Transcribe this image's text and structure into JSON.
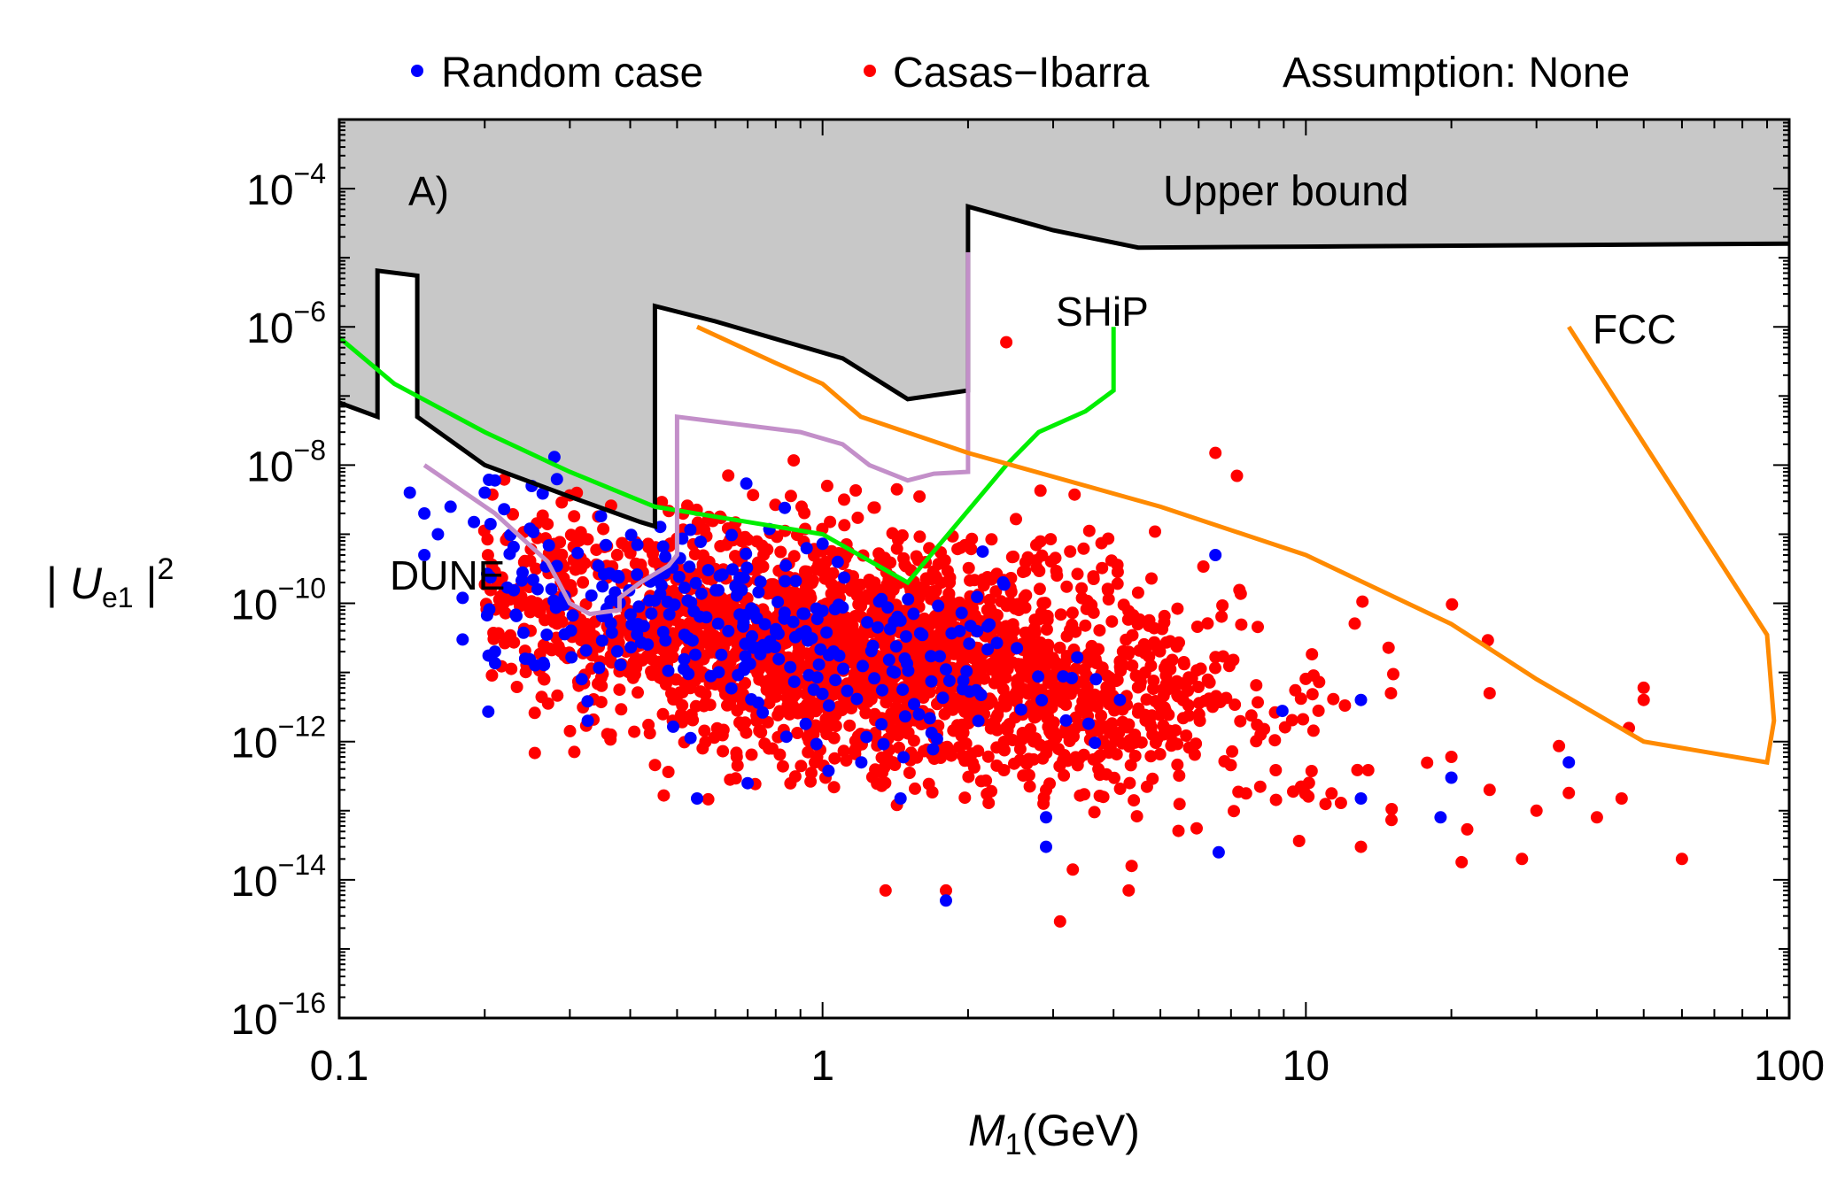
{
  "chart_data": {
    "type": "scatter",
    "title": "",
    "panel_label": "A)",
    "xlabel_main": "M",
    "xlabel_sub": "1",
    "xlabel_unit": "(GeV)",
    "ylabel_pre": "| ",
    "ylabel_main": "U",
    "ylabel_sub": "e1",
    "ylabel_post": " |",
    "ylabel_sup": "2",
    "x_scale": "log",
    "y_scale": "log",
    "xlim": [
      0.1,
      100
    ],
    "ylim": [
      1e-16,
      0.001
    ],
    "x_ticks": [
      {
        "value": 0.1,
        "label": "0.1"
      },
      {
        "value": 1,
        "label": "1"
      },
      {
        "value": 10,
        "label": "10"
      },
      {
        "value": 100,
        "label": "100"
      }
    ],
    "y_ticks": [
      {
        "exp": -4,
        "base": "10",
        "sup": "−4"
      },
      {
        "exp": -6,
        "base": "10",
        "sup": "−6"
      },
      {
        "exp": -8,
        "base": "10",
        "sup": "−8"
      },
      {
        "exp": -10,
        "base": "10",
        "sup": "−10"
      },
      {
        "exp": -12,
        "base": "10",
        "sup": "−12"
      },
      {
        "exp": -14,
        "base": "10",
        "sup": "−14"
      },
      {
        "exp": -16,
        "base": "10",
        "sup": "−16"
      }
    ],
    "legend": {
      "placement": "top",
      "entries": [
        {
          "label": "Random case",
          "color": "#0000ff"
        },
        {
          "label": "Casas−Ibarra",
          "color": "#ff0000"
        }
      ],
      "note": "Assumption: None"
    },
    "series": [
      {
        "name": "Casas−Ibarra",
        "color": "#ff0000",
        "cloud": {
          "count": 2400,
          "seed": 17,
          "log_x_center": 0.05,
          "log_x_sd": 0.42,
          "log_y_center": -10.7,
          "log_y_sd": 0.85,
          "slope": -1.0
        },
        "outliers": [
          [
            2.4,
            6e-07
          ],
          [
            6.5,
            1.5e-08
          ],
          [
            7.2,
            7e-09
          ],
          [
            3.1,
            2.5e-15
          ],
          [
            4.3,
            7e-15
          ],
          [
            1.8,
            7e-15
          ],
          [
            1.35,
            7e-15
          ],
          [
            60,
            2e-14
          ],
          [
            50,
            6e-12
          ],
          [
            50,
            4e-12
          ],
          [
            35,
            1.8e-13
          ],
          [
            40,
            8e-14
          ],
          [
            45,
            1.5e-13
          ],
          [
            28,
            2e-14
          ],
          [
            21,
            1.8e-14
          ],
          [
            24,
            5e-12
          ],
          [
            24,
            2e-13
          ],
          [
            30,
            1e-13
          ],
          [
            13,
            3e-14
          ],
          [
            15,
            5e-12
          ],
          [
            20,
            6e-13
          ]
        ]
      },
      {
        "name": "Random case",
        "color": "#0000ff",
        "cloud": {
          "count": 330,
          "seed": 91,
          "log_x_center": -0.2,
          "log_x_sd": 0.38,
          "log_y_center": -10.3,
          "log_y_sd": 0.7,
          "slope": -1.1
        },
        "outliers": [
          [
            0.14,
            4e-09
          ],
          [
            0.15,
            2e-09
          ],
          [
            0.17,
            2.5e-09
          ],
          [
            0.16,
            1e-09
          ],
          [
            0.18,
            1.2e-10
          ],
          [
            0.2,
            4e-09
          ],
          [
            0.21,
            6e-09
          ],
          [
            0.19,
            1.5e-09
          ],
          [
            0.18,
            3e-11
          ],
          [
            0.21,
            2e-11
          ],
          [
            0.15,
            5e-10
          ],
          [
            1.8,
            5e-15
          ],
          [
            0.55,
            1.5e-13
          ],
          [
            0.7,
            2.5e-13
          ],
          [
            1.45,
            1.5e-13
          ],
          [
            2.9,
            3e-14
          ],
          [
            2.9,
            8e-14
          ],
          [
            6.6,
            2.5e-14
          ],
          [
            19,
            8e-14
          ],
          [
            13,
            1.5e-13
          ],
          [
            20,
            3e-13
          ],
          [
            35,
            5e-13
          ],
          [
            13,
            4e-12
          ],
          [
            6.5,
            5e-10
          ]
        ]
      }
    ],
    "curves": [
      {
        "name": "Upper bound",
        "label": "Upper bound",
        "color": "#000000",
        "points": [
          [
            0.1,
            8e-08
          ],
          [
            0.12,
            5e-08
          ],
          [
            0.12,
            6.5e-06
          ],
          [
            0.145,
            5.5e-06
          ],
          [
            0.145,
            5e-08
          ],
          [
            0.2,
            1e-08
          ],
          [
            0.3,
            3.5e-09
          ],
          [
            0.42,
            1.5e-09
          ],
          [
            0.45,
            1.3e-09
          ],
          [
            0.45,
            2e-06
          ],
          [
            0.6,
            1.2e-06
          ],
          [
            1.1,
            3.5e-07
          ],
          [
            1.5,
            9e-08
          ],
          [
            2.0,
            1.2e-07
          ],
          [
            2.0,
            5.5e-05
          ],
          [
            3.0,
            2.5e-05
          ],
          [
            4.5,
            1.4e-05
          ],
          [
            10,
            1.45e-05
          ],
          [
            100,
            1.6e-05
          ]
        ]
      },
      {
        "name": "SHiP",
        "label": "SHiP",
        "color": "#00ee00",
        "points": [
          [
            0.1,
            7e-07
          ],
          [
            0.13,
            1.5e-07
          ],
          [
            0.2,
            3e-08
          ],
          [
            0.3,
            8e-09
          ],
          [
            0.45,
            2.5e-09
          ],
          [
            1.0,
            1e-09
          ],
          [
            1.5,
            2e-10
          ],
          [
            2.4,
            1e-08
          ],
          [
            2.8,
            3e-08
          ],
          [
            3.5,
            6e-08
          ],
          [
            4.0,
            1.2e-07
          ],
          [
            4.0,
            1e-06
          ]
        ]
      },
      {
        "name": "DUNE",
        "label": "DUNE",
        "color": "#c38fc9",
        "points": [
          [
            0.15,
            1e-08
          ],
          [
            0.21,
            2e-09
          ],
          [
            0.27,
            4e-10
          ],
          [
            0.3,
            1e-10
          ],
          [
            0.33,
            7e-11
          ],
          [
            0.38,
            8e-11
          ],
          [
            0.38,
            1.2e-10
          ],
          [
            0.42,
            2e-10
          ],
          [
            0.48,
            3.5e-10
          ],
          [
            0.5,
            5e-10
          ],
          [
            0.5,
            5e-08
          ],
          [
            0.9,
            3e-08
          ],
          [
            1.1,
            2e-08
          ],
          [
            1.25,
            1e-08
          ],
          [
            1.5,
            6e-09
          ],
          [
            1.7,
            7.5e-09
          ],
          [
            2.0,
            8e-09
          ],
          [
            2.0,
            1.2e-05
          ]
        ]
      },
      {
        "name": "FCC",
        "label": "FCC",
        "color": "#ff8a00",
        "points": [
          [
            0.55,
            1e-06
          ],
          [
            0.8,
            3e-07
          ],
          [
            1.0,
            1.5e-07
          ],
          [
            1.2,
            5e-08
          ],
          [
            2.0,
            1.5e-08
          ],
          [
            5,
            2.5e-09
          ],
          [
            10,
            5e-10
          ],
          [
            20,
            5e-11
          ],
          [
            30,
            8e-12
          ],
          [
            50,
            1e-12
          ],
          [
            90,
            5e-13
          ],
          [
            93,
            2e-12
          ],
          [
            90,
            3.5e-11
          ],
          [
            35,
            1e-06
          ]
        ]
      }
    ],
    "shaded_region": {
      "name": "excluded region above upper bound",
      "color": "#c8c8c8",
      "bound": "Upper bound"
    }
  }
}
